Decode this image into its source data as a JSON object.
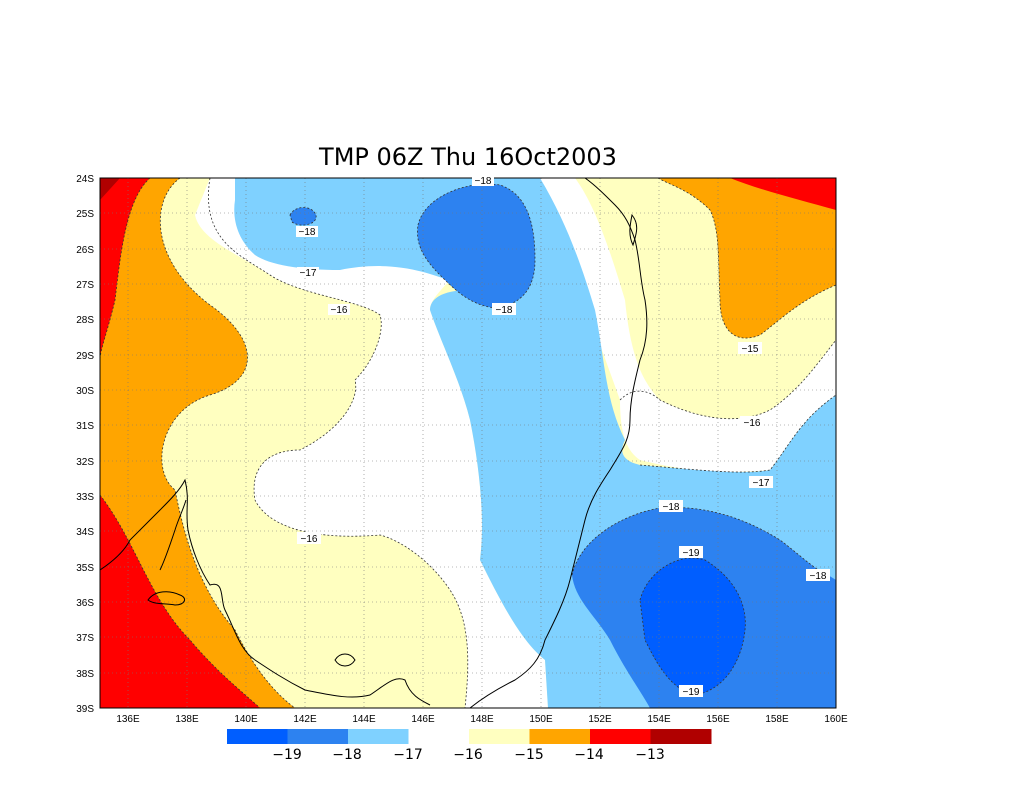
{
  "title": "TMP 06Z Thu 16Oct2003",
  "axes": {
    "x_ticks": [
      "136E",
      "138E",
      "140E",
      "142E",
      "144E",
      "146E",
      "148E",
      "150E",
      "152E",
      "154E",
      "156E",
      "158E",
      "160E"
    ],
    "y_ticks": [
      "24S",
      "25S",
      "26S",
      "27S",
      "28S",
      "29S",
      "30S",
      "31S",
      "32S",
      "33S",
      "34S",
      "35S",
      "36S",
      "37S",
      "38S",
      "39S"
    ]
  },
  "colorbar": {
    "colors": [
      "#005eff",
      "#2d82f0",
      "#7fd1ff",
      "#ffffff",
      "#ffffc0",
      "#ffa500",
      "#ff0000",
      "#b00000"
    ],
    "labels": [
      "−19",
      "−18",
      "−17",
      "−16",
      "−15",
      "−14",
      "−13"
    ]
  },
  "contour_labels": [
    {
      "id": "a",
      "text": "−18"
    },
    {
      "id": "b",
      "text": "−18"
    },
    {
      "id": "c",
      "text": "−17"
    },
    {
      "id": "d",
      "text": "−16"
    },
    {
      "id": "e",
      "text": "−18"
    },
    {
      "id": "f",
      "text": "−15"
    },
    {
      "id": "g",
      "text": "−16"
    },
    {
      "id": "h",
      "text": "−17"
    },
    {
      "id": "i",
      "text": "−16"
    },
    {
      "id": "j",
      "text": "−18"
    },
    {
      "id": "k",
      "text": "−19"
    },
    {
      "id": "l",
      "text": "−18"
    },
    {
      "id": "m",
      "text": "−19"
    }
  ]
}
